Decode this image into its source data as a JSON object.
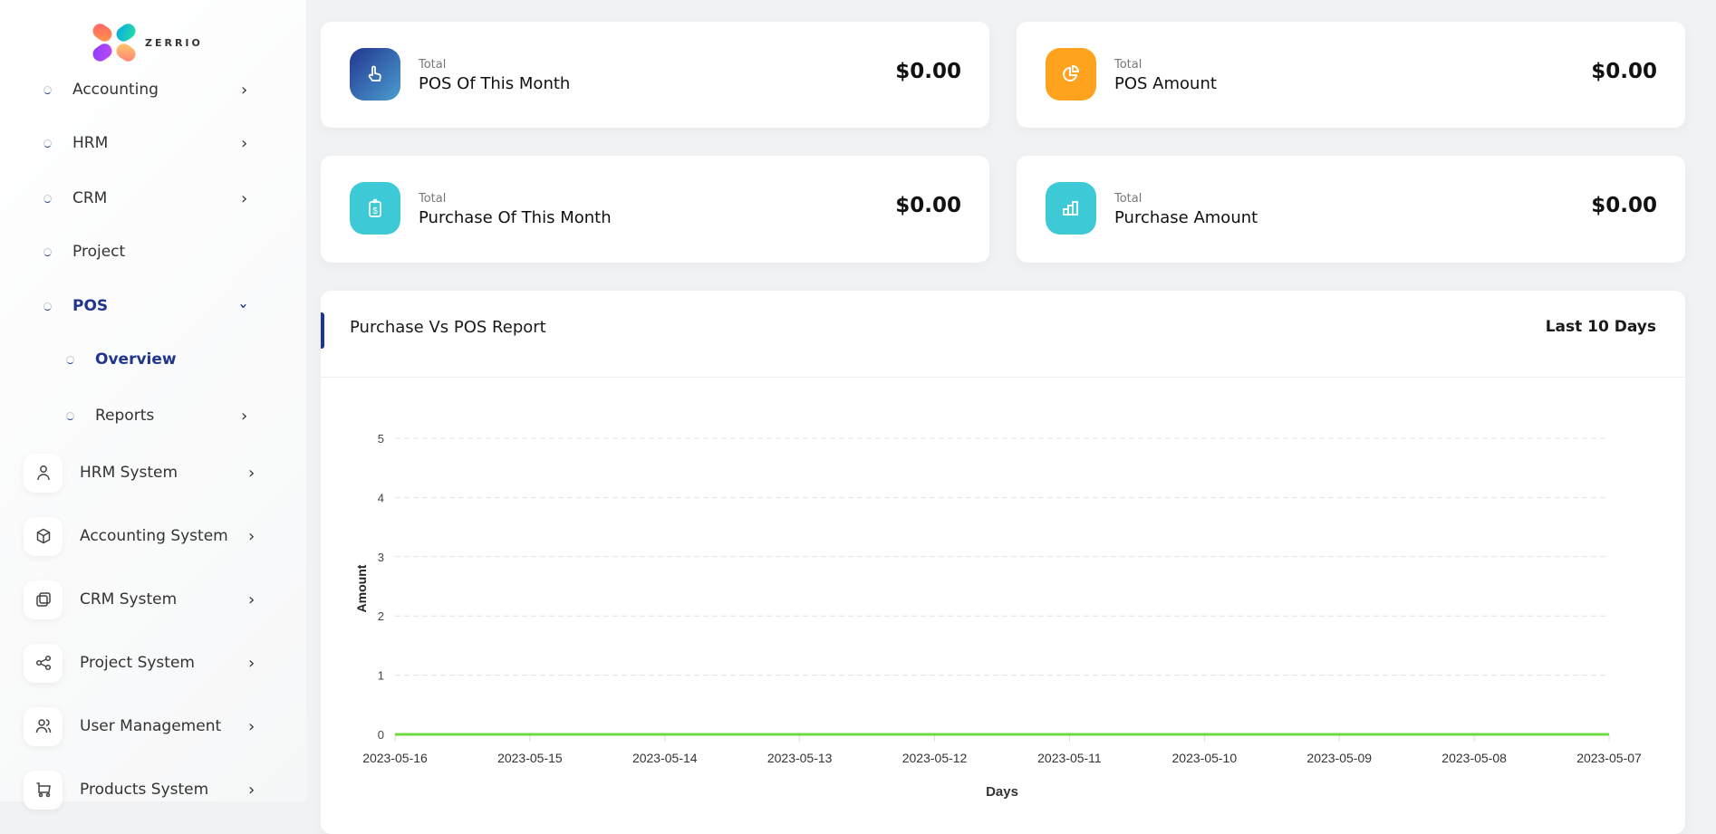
{
  "brand": {
    "name": "ZERRIO"
  },
  "sidebar": {
    "items": [
      {
        "label": "Accounting",
        "chevron": "chevron-right"
      },
      {
        "label": "HRM",
        "chevron": "chevron-right"
      },
      {
        "label": "CRM",
        "chevron": "chevron-right"
      },
      {
        "label": "Project"
      },
      {
        "label": "POS",
        "chevron": "chevron-down",
        "active": true
      },
      {
        "label": "Overview",
        "active": true
      },
      {
        "label": "Reports",
        "chevron": "chevron-right"
      }
    ],
    "systems": [
      {
        "label": "HRM System",
        "icon": "user-icon"
      },
      {
        "label": "Accounting System",
        "icon": "box-icon"
      },
      {
        "label": "CRM System",
        "icon": "layers-icon"
      },
      {
        "label": "Project System",
        "icon": "share-icon"
      },
      {
        "label": "User Management",
        "icon": "users-icon"
      },
      {
        "label": "Products System",
        "icon": "cart-icon"
      }
    ],
    "accent": "#21358d"
  },
  "stats": [
    {
      "sub": "Total",
      "title": "POS Of This Month",
      "amount": "$0.00",
      "icon": "pointer-hand-icon",
      "color": "#2a4fa0"
    },
    {
      "sub": "Total",
      "title": "POS Amount",
      "amount": "$0.00",
      "icon": "pie-chart-icon",
      "color": "#ffa21d"
    },
    {
      "sub": "Total",
      "title": "Purchase Of This Month",
      "amount": "$0.00",
      "icon": "clipboard-dollar-icon",
      "color": "#3ec9d6"
    },
    {
      "sub": "Total",
      "title": "Purchase Amount",
      "amount": "$0.00",
      "icon": "bar-chart-icon",
      "color": "#3ec9d6"
    }
  ],
  "report": {
    "title": "Purchase Vs POS Report",
    "range": "Last 10 Days"
  },
  "chart_data": {
    "type": "line",
    "xlabel": "Days",
    "ylabel": "Amount",
    "categories": [
      "2023-05-16",
      "2023-05-15",
      "2023-05-14",
      "2023-05-13",
      "2023-05-12",
      "2023-05-11",
      "2023-05-10",
      "2023-05-09",
      "2023-05-08",
      "2023-05-07"
    ],
    "series": [
      {
        "values": [
          0,
          0,
          0,
          0,
          0,
          0,
          0,
          0,
          0,
          0
        ],
        "color": "#6fd943"
      }
    ],
    "ylim": [
      0,
      5
    ],
    "yticks": [
      "0",
      "1",
      "2",
      "3",
      "4",
      "5"
    ],
    "grid": true
  }
}
